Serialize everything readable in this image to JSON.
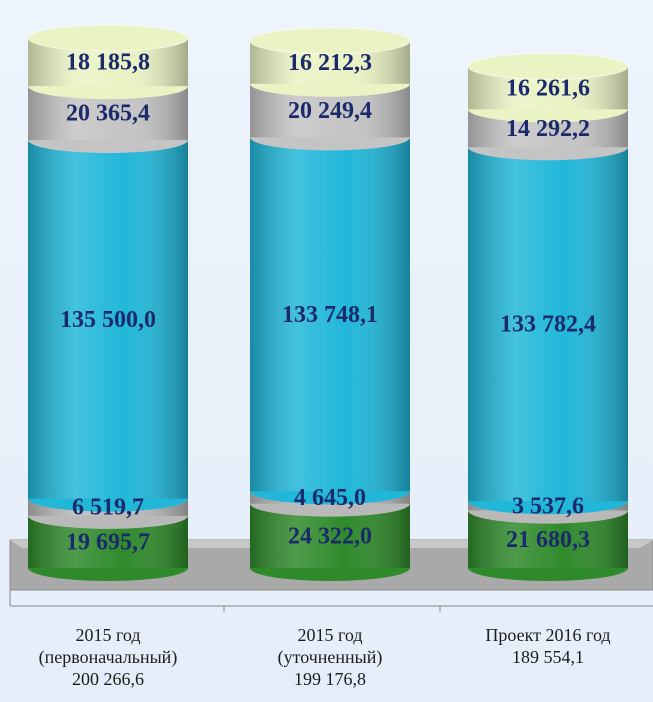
{
  "chart_data": {
    "type": "stacked-cylinder",
    "categories": [
      "2015 год\n(первоначальный)\n200 266,6",
      "2015 год\n(уточненный)\n199 176,8",
      "Проект 2016 год\n189 554,1"
    ],
    "series": [
      {
        "color": "#2f8a2b",
        "values": [
          19695.7,
          24322.0,
          21680.3
        ],
        "value_labels": [
          "19 695,7",
          "24 322,0",
          "21 680,3"
        ]
      },
      {
        "color": "#b9b9b9",
        "values": [
          6519.7,
          4645.0,
          3537.6
        ],
        "value_labels": [
          "6 519,7",
          "4 645,0",
          "3 537,6"
        ]
      },
      {
        "color": "#21b7d9",
        "values": [
          135500.0,
          133748.1,
          133782.4
        ],
        "value_labels": [
          "135 500,0",
          "133 748,1",
          "133 782,4"
        ]
      },
      {
        "color": "#c4c4c4",
        "values": [
          20365.4,
          20249.4,
          14292.2
        ],
        "value_labels": [
          "20 365,4",
          "20 249,4",
          "14 292,2"
        ]
      },
      {
        "color": "#eaf3c4",
        "values": [
          18185.8,
          16212.3,
          16261.6
        ],
        "value_labels": [
          "18 185,8",
          "16 212,3",
          "16 261,6"
        ]
      }
    ]
  }
}
